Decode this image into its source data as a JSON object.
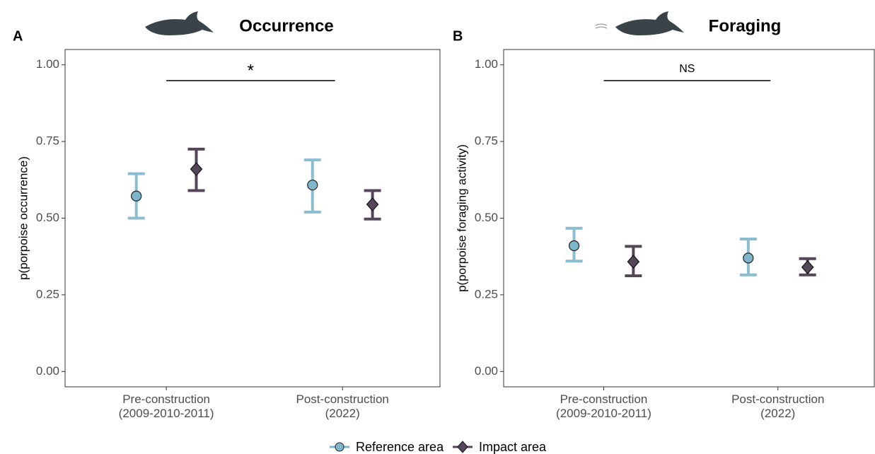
{
  "chart_data": [
    {
      "type": "errorbar",
      "panel": "A",
      "title": "Occurrence",
      "y_label": "p(porpoise occurrence)",
      "categories": [
        "Pre-construction\n(2009-2010-2011)",
        "Post-construction\n(2022)"
      ],
      "ylim": [
        -0.05,
        1.05
      ],
      "yticks": [
        {
          "value": 0,
          "label": "0.00"
        },
        {
          "value": 0.25,
          "label": "0.25"
        },
        {
          "value": 0.5,
          "label": "0.50"
        },
        {
          "value": 0.75,
          "label": "0.75"
        },
        {
          "value": 1,
          "label": "1.00"
        }
      ],
      "annotation": "*",
      "series": [
        {
          "name": "Reference area",
          "color": "#7fb6cb",
          "values": [
            0.572,
            0.608
          ],
          "lower": [
            0.5,
            0.52
          ],
          "upper": [
            0.645,
            0.69
          ]
        },
        {
          "name": "Impact area",
          "color": "#55465a",
          "values": [
            0.66,
            0.545
          ],
          "lower": [
            0.59,
            0.497
          ],
          "upper": [
            0.725,
            0.59
          ]
        }
      ]
    },
    {
      "type": "errorbar",
      "panel": "B",
      "title": "Foraging",
      "y_label": "p(porpoise foraging activity)",
      "categories": [
        "Pre-construction\n(2009-2010-2011)",
        "Post-construction\n(2022)"
      ],
      "ylim": [
        -0.05,
        1.05
      ],
      "yticks": [
        {
          "value": 0,
          "label": "0.00"
        },
        {
          "value": 0.25,
          "label": "0.25"
        },
        {
          "value": 0.5,
          "label": "0.50"
        },
        {
          "value": 0.75,
          "label": "0.75"
        },
        {
          "value": 1,
          "label": "1.00"
        }
      ],
      "annotation": "NS",
      "series": [
        {
          "name": "Reference area",
          "color": "#7fb6cb",
          "values": [
            0.41,
            0.37
          ],
          "lower": [
            0.36,
            0.315
          ],
          "upper": [
            0.467,
            0.432
          ]
        },
        {
          "name": "Impact area",
          "color": "#55465a",
          "values": [
            0.358,
            0.34
          ],
          "lower": [
            0.312,
            0.315
          ],
          "upper": [
            0.408,
            0.368
          ]
        }
      ]
    }
  ]
}
